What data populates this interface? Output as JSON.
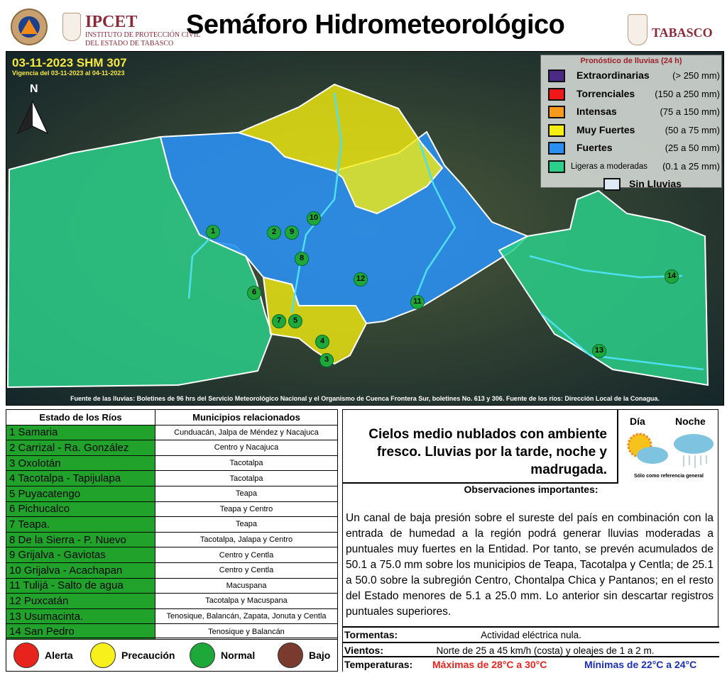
{
  "header": {
    "title": "Semáforo Hidrometeorológico",
    "ipcet_name": "IPCET",
    "ipcet_line1": "INSTITUTO DE PROTECCIÓN CIVIL",
    "ipcet_line2": "DEL ESTADO DE TABASCO",
    "state_name": "TABASCO"
  },
  "map": {
    "bulletin": "03-11-2023 SHM 307",
    "validity": "Vigencia del 03-11-2023 al 04-11-2023",
    "north_label": "N",
    "source": "Fuente de las lluvias: Boletines de 96 hrs del Servicio Meteorológico Nacional y el Organismo de Cuenca Frontera Sur, boletines No. 613 y 306. Fuente de los ríos: Dirección Local de la Conagua.",
    "markers": [
      "1",
      "2",
      "3",
      "4",
      "5",
      "6",
      "7",
      "8",
      "9",
      "10",
      "11",
      "12",
      "13",
      "14"
    ],
    "legend": {
      "title": "Pronóstico de lluvias (24 h)",
      "items": [
        {
          "name": "Extraordinarias",
          "range": "(> 250 mm)",
          "color": "#4b2a86"
        },
        {
          "name": "Torrenciales",
          "range": "(150 a 250 mm)",
          "color": "#f01818"
        },
        {
          "name": "Intensas",
          "range": "(75 a 150 mm)",
          "color": "#f59a1a"
        },
        {
          "name": "Muy Fuertes",
          "range": "(50 a 75 mm)",
          "color": "#f5ee10"
        },
        {
          "name": "Fuertes",
          "range": "(25 a 50 mm)",
          "color": "#2a8ff0"
        },
        {
          "name": "Ligeras a moderadas",
          "range": "(0.1 a 25 mm)",
          "color": "#2ccf8a"
        },
        {
          "name": "Sin Lluvias",
          "range": "",
          "color": "#dde9f3"
        }
      ]
    }
  },
  "rivers": {
    "headers": [
      "Estado de los Ríos",
      "Municipios relacionados"
    ],
    "rows": [
      {
        "river": "1 Samaria",
        "municipalities": "Cunduacán, Jalpa de Méndez y Nacajuca"
      },
      {
        "river": "2 Carrizal - Ra. González",
        "municipalities": "Centro y Nacajuca"
      },
      {
        "river": "3 Oxolotán",
        "municipalities": "Tacotalpa"
      },
      {
        "river": "4 Tacotalpa - Tapijulapa",
        "municipalities": "Tacotalpa"
      },
      {
        "river": "5 Puyacatengo",
        "municipalities": "Teapa"
      },
      {
        "river": "6 Pichucalco",
        "municipalities": "Teapa y Centro"
      },
      {
        "river": "7 Teapa.",
        "municipalities": "Teapa"
      },
      {
        "river": "8 De la Sierra - P. Nuevo",
        "municipalities": "Tacotalpa, Jalapa y Centro"
      },
      {
        "river": "9 Grijalva - Gaviotas",
        "municipalities": "Centro y Centla"
      },
      {
        "river": "10 Grijalva - Acachapan",
        "municipalities": "Centro y Centla"
      },
      {
        "river": "11 Tulijá - Salto de agua",
        "municipalities": "Macuspana"
      },
      {
        "river": "12 Puxcatán",
        "municipalities": "Tacotalpa y Macuspana"
      },
      {
        "river": "13 Usumacinta.",
        "municipalities": "Tenosique, Balancán, Zapata, Jonuta y Centla"
      },
      {
        "river": "14 San Pedro",
        "municipalities": "Tenosique y Balancán"
      }
    ],
    "status_color": "#21a32b"
  },
  "states": [
    {
      "label": "Alerta",
      "color": "#e8231e"
    },
    {
      "label": "Precaución",
      "color": "#f7f01a"
    },
    {
      "label": "Normal",
      "color": "#1fa83a"
    },
    {
      "label": "Bajo",
      "color": "#7a3b2e"
    }
  ],
  "forecast": {
    "text": "Cielos medio nublados con ambiente fresco. Lluvias por la tarde, noche y madrugada.",
    "day_label": "Día",
    "night_label": "Noche",
    "reference": "Sólo como referencia general"
  },
  "observations": {
    "title": "Observaciones importantes:",
    "text": "Un canal de baja presión sobre el sureste del país en combinación con la entrada de humedad a la región podrá generar lluvias moderadas a puntuales muy fuertes en la Entidad. Por tanto, se prevén acumulados de 50.1 a 75.0 mm sobre los municipios de Teapa, Tacotalpa y Centla; de 25.1 a 50.0 sobre la subregión Centro, Chontalpa Chica y Pantanos; en el resto del Estado menores de 5.1 a 25.0 mm. Lo anterior sin descartar registros puntuales superiores."
  },
  "conditions": {
    "storms_label": "Tormentas:",
    "storms": "Actividad eléctrica nula.",
    "winds_label": "Vientos:",
    "winds": "Norte de 25 a 45 km/h (costa) y oleajes de 1 a 2 m.",
    "temps_label": "Temperaturas:",
    "max": "Máximas de 28°C a 30°C",
    "min": "Mínimas de 22°C a 24°C",
    "max_color": "#e8231e",
    "min_color": "#1a2fb0"
  }
}
